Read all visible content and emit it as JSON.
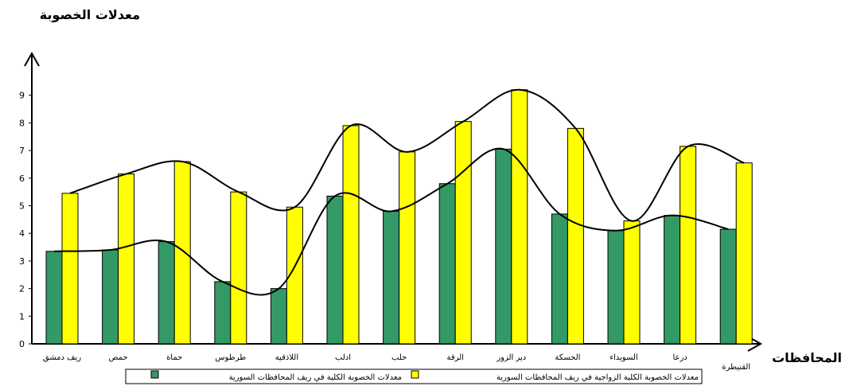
{
  "chart_data": {
    "type": "bar",
    "title": "معدلات الخصوبة",
    "xlabel": "المحافظات",
    "ylabel": "",
    "ylim": [
      0,
      10
    ],
    "yticks": [
      0,
      1,
      2,
      3,
      4,
      5,
      6,
      7,
      8,
      9
    ],
    "grid": false,
    "legend_position": "bottom",
    "categories": [
      "ريف دمشق",
      "حمص",
      "حماة",
      "طرطوس",
      "اللاذقية",
      "ادلب",
      "حلب",
      "الرقة",
      "دير الزور",
      "الحسكة",
      "السويداء",
      "درعا",
      "القنيطرة"
    ],
    "series": [
      {
        "name": "معدلات الخصوبة الكلية في ريف المحافظات السورية",
        "color": "#339966",
        "values": [
          3.35,
          3.4,
          3.7,
          2.25,
          2.0,
          5.35,
          4.8,
          5.8,
          7.05,
          4.7,
          4.1,
          4.65,
          4.15
        ]
      },
      {
        "name": "معدلات الخصوبة الكلية الزواجية في ريف المحافظات السورية",
        "color": "#ffff00",
        "values": [
          5.45,
          6.15,
          6.6,
          5.5,
          4.95,
          7.9,
          6.95,
          8.05,
          9.2,
          7.8,
          4.45,
          7.15,
          6.55
        ]
      }
    ]
  }
}
